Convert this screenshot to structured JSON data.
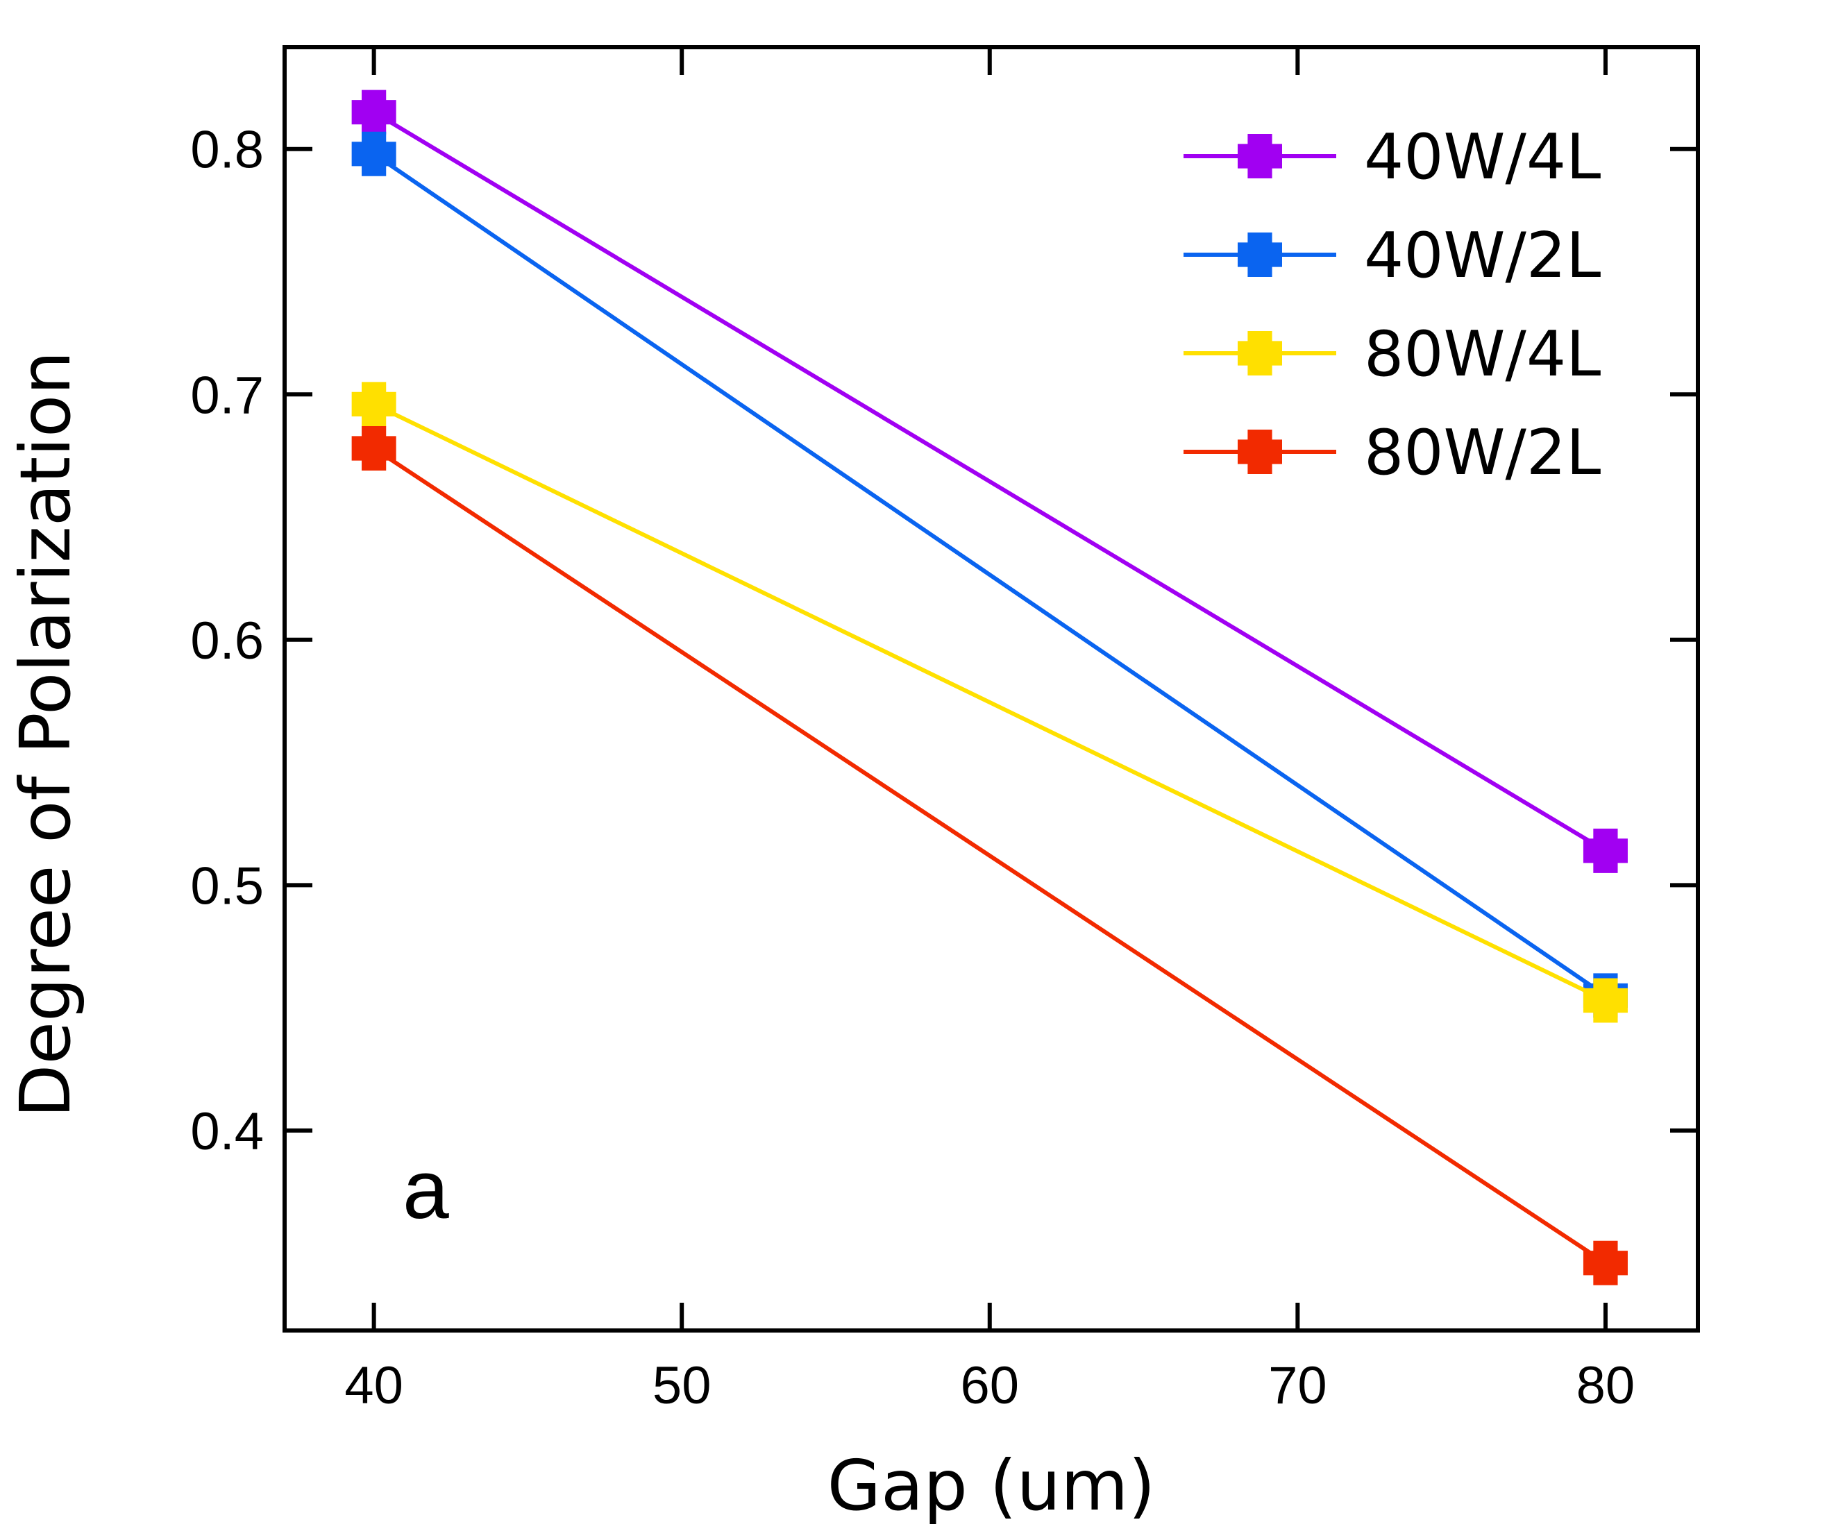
{
  "chart_data": {
    "type": "line",
    "title": "",
    "xlabel": "Gap (um)",
    "ylabel": "Degree of Polarization",
    "xlim": [
      37.1,
      83.0
    ],
    "ylim": [
      0.3185,
      0.8415
    ],
    "xticks": [
      40,
      50,
      60,
      70,
      80
    ],
    "yticks": [
      0.4,
      0.5,
      0.6,
      0.7,
      0.8
    ],
    "xtick_labels": [
      "40",
      "50",
      "60",
      "70",
      "80"
    ],
    "ytick_labels": [
      "0.4",
      "0.5",
      "0.6",
      "0.7",
      "0.8"
    ],
    "grid": false,
    "legend_position": "top-right",
    "panel_label": "a",
    "x": [
      40,
      80
    ],
    "series": [
      {
        "name": "40W/4L",
        "color": "#a100f2",
        "values": [
          0.815,
          0.514
        ]
      },
      {
        "name": "40W/2L",
        "color": "#0a64f0",
        "values": [
          0.798,
          0.455
        ]
      },
      {
        "name": "80W/4L",
        "color": "#ffe000",
        "values": [
          0.696,
          0.453
        ]
      },
      {
        "name": "80W/2L",
        "color": "#f22a00",
        "values": [
          0.678,
          0.346
        ]
      }
    ]
  }
}
